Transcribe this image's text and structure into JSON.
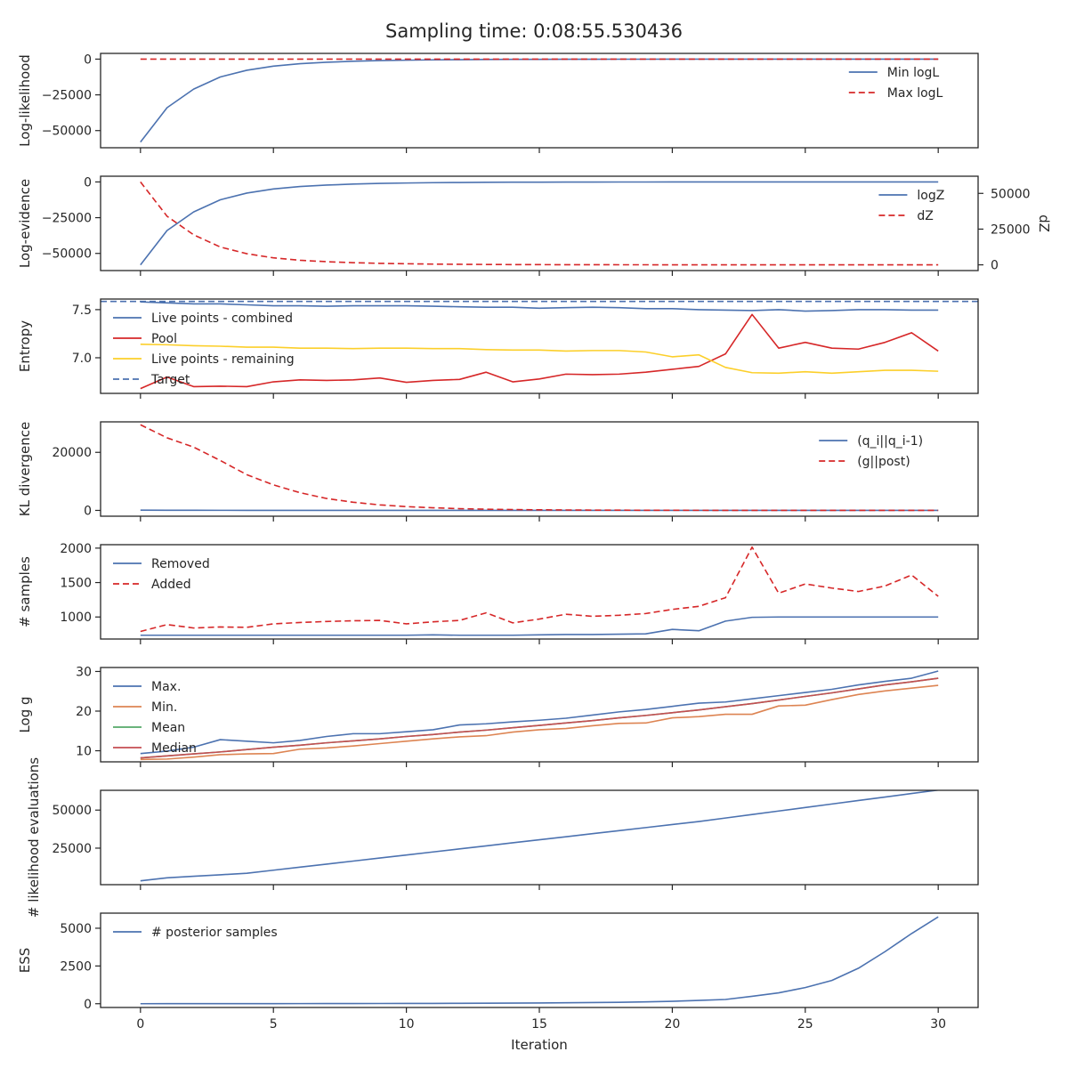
{
  "figure": {
    "title": "Sampling time: 0:08:55.530436",
    "xlabel": "Iteration",
    "xlim": [
      -1.5,
      31.5
    ],
    "xticks": [
      0,
      5,
      10,
      15,
      20,
      25,
      30
    ]
  },
  "colors": {
    "blue": "#4c72b0",
    "red": "#d62728",
    "orange": "#dd8452",
    "green": "#55a868",
    "median": "#c44e52",
    "yellow": "#fccf2a"
  },
  "chart_data": [
    {
      "type": "line",
      "name": "loglikelihood",
      "ylabel": "Log-likelihood",
      "ylim": [
        -62000,
        4000
      ],
      "yticks": [
        0,
        -25000,
        -50000
      ],
      "yticklabels": [
        "0",
        "−25000",
        "−50000"
      ],
      "legend": "upper-right",
      "series": [
        {
          "name": "Min logL",
          "color": "#4c72b0",
          "dash": false,
          "values": [
            -58000,
            -34000,
            -21000,
            -12500,
            -7800,
            -4900,
            -3200,
            -2200,
            -1500,
            -1050,
            -750,
            -520,
            -370,
            -260,
            -190,
            -140,
            -100,
            -75,
            -55,
            -40,
            -30,
            -22,
            -16,
            -12,
            -9,
            -7,
            -5,
            -4,
            -3,
            -2,
            -1
          ]
        },
        {
          "name": "Max logL",
          "color": "#d62728",
          "dash": true,
          "values": [
            0,
            0,
            0,
            0,
            0,
            0,
            0,
            0,
            0,
            0,
            0,
            0,
            0,
            0,
            0,
            0,
            0,
            0,
            0,
            0,
            0,
            0,
            0,
            0,
            0,
            0,
            0,
            0,
            0,
            0,
            0
          ]
        }
      ]
    },
    {
      "type": "line",
      "name": "logevidence",
      "ylabel": "Log-evidence",
      "ylim": [
        -62000,
        4000
      ],
      "yticks": [
        0,
        -25000,
        -50000
      ],
      "yticklabels": [
        "0",
        "−25000",
        "−50000"
      ],
      "y2label": "dZ",
      "y2lim": [
        -4000,
        62000
      ],
      "y2ticks": [
        0,
        25000,
        50000
      ],
      "y2ticklabels": [
        "0",
        "25000",
        "50000"
      ],
      "legend": "upper-right",
      "series": [
        {
          "name": "logZ",
          "color": "#4c72b0",
          "dash": false,
          "axis": "left",
          "values": [
            -58000,
            -34000,
            -21000,
            -12500,
            -7800,
            -4900,
            -3200,
            -2200,
            -1500,
            -1050,
            -750,
            -520,
            -370,
            -260,
            -190,
            -140,
            -100,
            -75,
            -55,
            -40,
            -30,
            -22,
            -16,
            -12,
            -9,
            -7,
            -5,
            -4,
            -3,
            -2,
            -1
          ]
        },
        {
          "name": "dZ",
          "color": "#d62728",
          "dash": true,
          "axis": "right",
          "values": [
            58000,
            34000,
            21000,
            12500,
            7800,
            4900,
            3200,
            2200,
            1500,
            1050,
            750,
            520,
            370,
            260,
            190,
            140,
            100,
            75,
            55,
            40,
            30,
            22,
            16,
            12,
            9,
            7,
            5,
            4,
            3,
            2,
            1
          ]
        }
      ]
    },
    {
      "type": "line",
      "name": "entropy",
      "ylabel": "Entropy",
      "ylim": [
        6.63,
        7.61
      ],
      "yticks": [
        7.0,
        7.5
      ],
      "yticklabels": [
        "7.0",
        "7.5"
      ],
      "legend": "upper-left",
      "series": [
        {
          "name": "Live points - combined",
          "color": "#4c72b0",
          "dash": false,
          "values": [
            7.58,
            7.57,
            7.56,
            7.56,
            7.55,
            7.54,
            7.54,
            7.535,
            7.54,
            7.54,
            7.54,
            7.535,
            7.53,
            7.525,
            7.525,
            7.515,
            7.52,
            7.525,
            7.52,
            7.51,
            7.51,
            7.5,
            7.495,
            7.49,
            7.5,
            7.485,
            7.49,
            7.5,
            7.5,
            7.495,
            7.495
          ]
        },
        {
          "name": "Pool",
          "color": "#d62728",
          "dash": false,
          "values": [
            6.68,
            6.8,
            6.7,
            6.705,
            6.7,
            6.75,
            6.77,
            6.765,
            6.77,
            6.79,
            6.745,
            6.765,
            6.775,
            6.85,
            6.75,
            6.78,
            6.83,
            6.825,
            6.83,
            6.85,
            6.88,
            6.91,
            7.04,
            7.45,
            7.1,
            7.16,
            7.1,
            7.09,
            7.16,
            7.26,
            7.07
          ]
        },
        {
          "name": "Live points - remaining",
          "color": "#fccf2a",
          "dash": false,
          "values": [
            7.14,
            7.135,
            7.125,
            7.12,
            7.11,
            7.11,
            7.1,
            7.1,
            7.095,
            7.1,
            7.1,
            7.095,
            7.095,
            7.085,
            7.08,
            7.08,
            7.07,
            7.075,
            7.075,
            7.06,
            7.01,
            7.03,
            6.9,
            6.845,
            6.84,
            6.855,
            6.84,
            6.855,
            6.87,
            6.87,
            6.86
          ]
        },
        {
          "name": "Target",
          "color": "#4c72b0",
          "dash": true,
          "hline": 7.585
        }
      ]
    },
    {
      "type": "line",
      "name": "kl",
      "ylabel": "KL divergence",
      "ylim": [
        -2000,
        30500
      ],
      "yticks": [
        0,
        20000
      ],
      "yticklabels": [
        "0",
        "20000"
      ],
      "legend": "upper-right",
      "series": [
        {
          "name": "(q_i||q_i-1)",
          "color": "#4c72b0",
          "dash": false,
          "values": [
            100,
            60,
            40,
            30,
            25,
            20,
            15,
            15,
            12,
            10,
            10,
            8,
            8,
            7,
            6,
            6,
            5,
            5,
            5,
            4,
            4,
            4,
            3,
            3,
            3,
            3,
            2,
            2,
            2,
            2,
            2
          ]
        },
        {
          "name": "(g||post)",
          "color": "#d62728",
          "dash": true,
          "values": [
            29500,
            25000,
            21800,
            17200,
            12300,
            8800,
            6100,
            4100,
            2800,
            1900,
            1300,
            900,
            600,
            400,
            300,
            200,
            150,
            100,
            80,
            60,
            40,
            30,
            20,
            15,
            10,
            8,
            5,
            4,
            3,
            2,
            1
          ]
        }
      ]
    },
    {
      "type": "line",
      "name": "samples",
      "ylabel": "# samples",
      "ylim": [
        680,
        2050
      ],
      "yticks": [
        1000,
        1500,
        2000
      ],
      "yticklabels": [
        "1000",
        "1500",
        "2000"
      ],
      "legend": "upper-left",
      "series": [
        {
          "name": "Removed",
          "color": "#4c72b0",
          "dash": false,
          "values": [
            735,
            735,
            735,
            735,
            735,
            735,
            735,
            735,
            735,
            735,
            735,
            740,
            735,
            735,
            735,
            740,
            745,
            745,
            750,
            755,
            820,
            800,
            940,
            995,
            1000,
            1000,
            1000,
            1000,
            1000,
            1000,
            1000
          ]
        },
        {
          "name": "Added",
          "color": "#d62728",
          "dash": true,
          "values": [
            790,
            890,
            840,
            855,
            850,
            900,
            920,
            935,
            945,
            950,
            900,
            930,
            950,
            1060,
            915,
            970,
            1040,
            1010,
            1025,
            1050,
            1110,
            1155,
            1280,
            2015,
            1345,
            1480,
            1420,
            1370,
            1450,
            1610,
            1300
          ]
        }
      ]
    },
    {
      "type": "line",
      "name": "logg",
      "ylabel": "Log g",
      "ylim": [
        7.2,
        31
      ],
      "yticks": [
        10,
        20,
        30
      ],
      "yticklabels": [
        "10",
        "20",
        "30"
      ],
      "legend": "upper-left",
      "series": [
        {
          "name": "Max.",
          "color": "#4c72b0",
          "dash": false,
          "values": [
            9.3,
            9.9,
            10.9,
            12.8,
            12.4,
            12.0,
            12.6,
            13.6,
            14.3,
            14.3,
            14.8,
            15.3,
            16.5,
            16.8,
            17.3,
            17.7,
            18.2,
            19.0,
            19.8,
            20.4,
            21.2,
            22.0,
            22.3,
            23.1,
            23.9,
            24.7,
            25.5,
            26.6,
            27.5,
            28.3,
            30.1
          ]
        },
        {
          "name": "Min.",
          "color": "#dd8452",
          "dash": false,
          "values": [
            7.8,
            7.9,
            8.4,
            9.0,
            9.2,
            9.3,
            10.4,
            10.7,
            11.2,
            11.8,
            12.4,
            13.0,
            13.5,
            13.8,
            14.7,
            15.3,
            15.6,
            16.3,
            16.9,
            17.0,
            18.3,
            18.6,
            19.2,
            19.2,
            21.3,
            21.5,
            22.9,
            24.2,
            25.1,
            25.8,
            26.5
          ]
        },
        {
          "name": "Mean",
          "color": "#55a868",
          "dash": false,
          "values": [
            8.2,
            8.7,
            9.2,
            9.7,
            10.3,
            10.9,
            11.4,
            12.0,
            12.5,
            13.0,
            13.6,
            14.1,
            14.7,
            15.2,
            15.8,
            16.4,
            17.0,
            17.6,
            18.3,
            18.9,
            19.6,
            20.3,
            21.1,
            21.9,
            22.8,
            23.7,
            24.6,
            25.6,
            26.6,
            27.4,
            28.3
          ]
        },
        {
          "name": "Median",
          "color": "#c44e52",
          "dash": false,
          "values": [
            8.2,
            8.7,
            9.2,
            9.7,
            10.3,
            10.9,
            11.4,
            12.0,
            12.5,
            13.0,
            13.6,
            14.1,
            14.7,
            15.2,
            15.8,
            16.4,
            17.0,
            17.6,
            18.3,
            18.9,
            19.6,
            20.3,
            21.1,
            21.9,
            22.8,
            23.7,
            24.6,
            25.6,
            26.6,
            27.4,
            28.3
          ]
        }
      ]
    },
    {
      "type": "line",
      "name": "likelihood-evaluations",
      "ylabel": "# likelihood evaluations",
      "ylim": [
        1000,
        63000
      ],
      "yticks": [
        25000,
        50000
      ],
      "yticklabels": [
        "25000",
        "50000"
      ],
      "legend": "none",
      "series": [
        {
          "name": "",
          "color": "#4c72b0",
          "dash": false,
          "values": [
            3500,
            5500,
            6500,
            7500,
            8500,
            10500,
            12500,
            14500,
            16500,
            18500,
            20500,
            22500,
            24500,
            26500,
            28500,
            30500,
            32500,
            34500,
            36500,
            38500,
            40500,
            42500,
            44800,
            47100,
            49400,
            51700,
            54000,
            56300,
            58600,
            60900,
            63200
          ]
        }
      ]
    },
    {
      "type": "line",
      "name": "ess",
      "ylabel": "ESS",
      "ylim": [
        -250,
        6000
      ],
      "yticks": [
        0,
        2500,
        5000
      ],
      "yticklabels": [
        "0",
        "2500",
        "5000"
      ],
      "legend": "upper-left",
      "series": [
        {
          "name": "# posterior samples",
          "color": "#4c72b0",
          "dash": false,
          "values": [
            0,
            2,
            3,
            4,
            5,
            6,
            8,
            10,
            12,
            15,
            18,
            22,
            26,
            32,
            40,
            50,
            62,
            78,
            95,
            120,
            160,
            220,
            280,
            490,
            720,
            1070,
            1540,
            2350,
            3450,
            4650,
            5750
          ]
        }
      ]
    }
  ]
}
